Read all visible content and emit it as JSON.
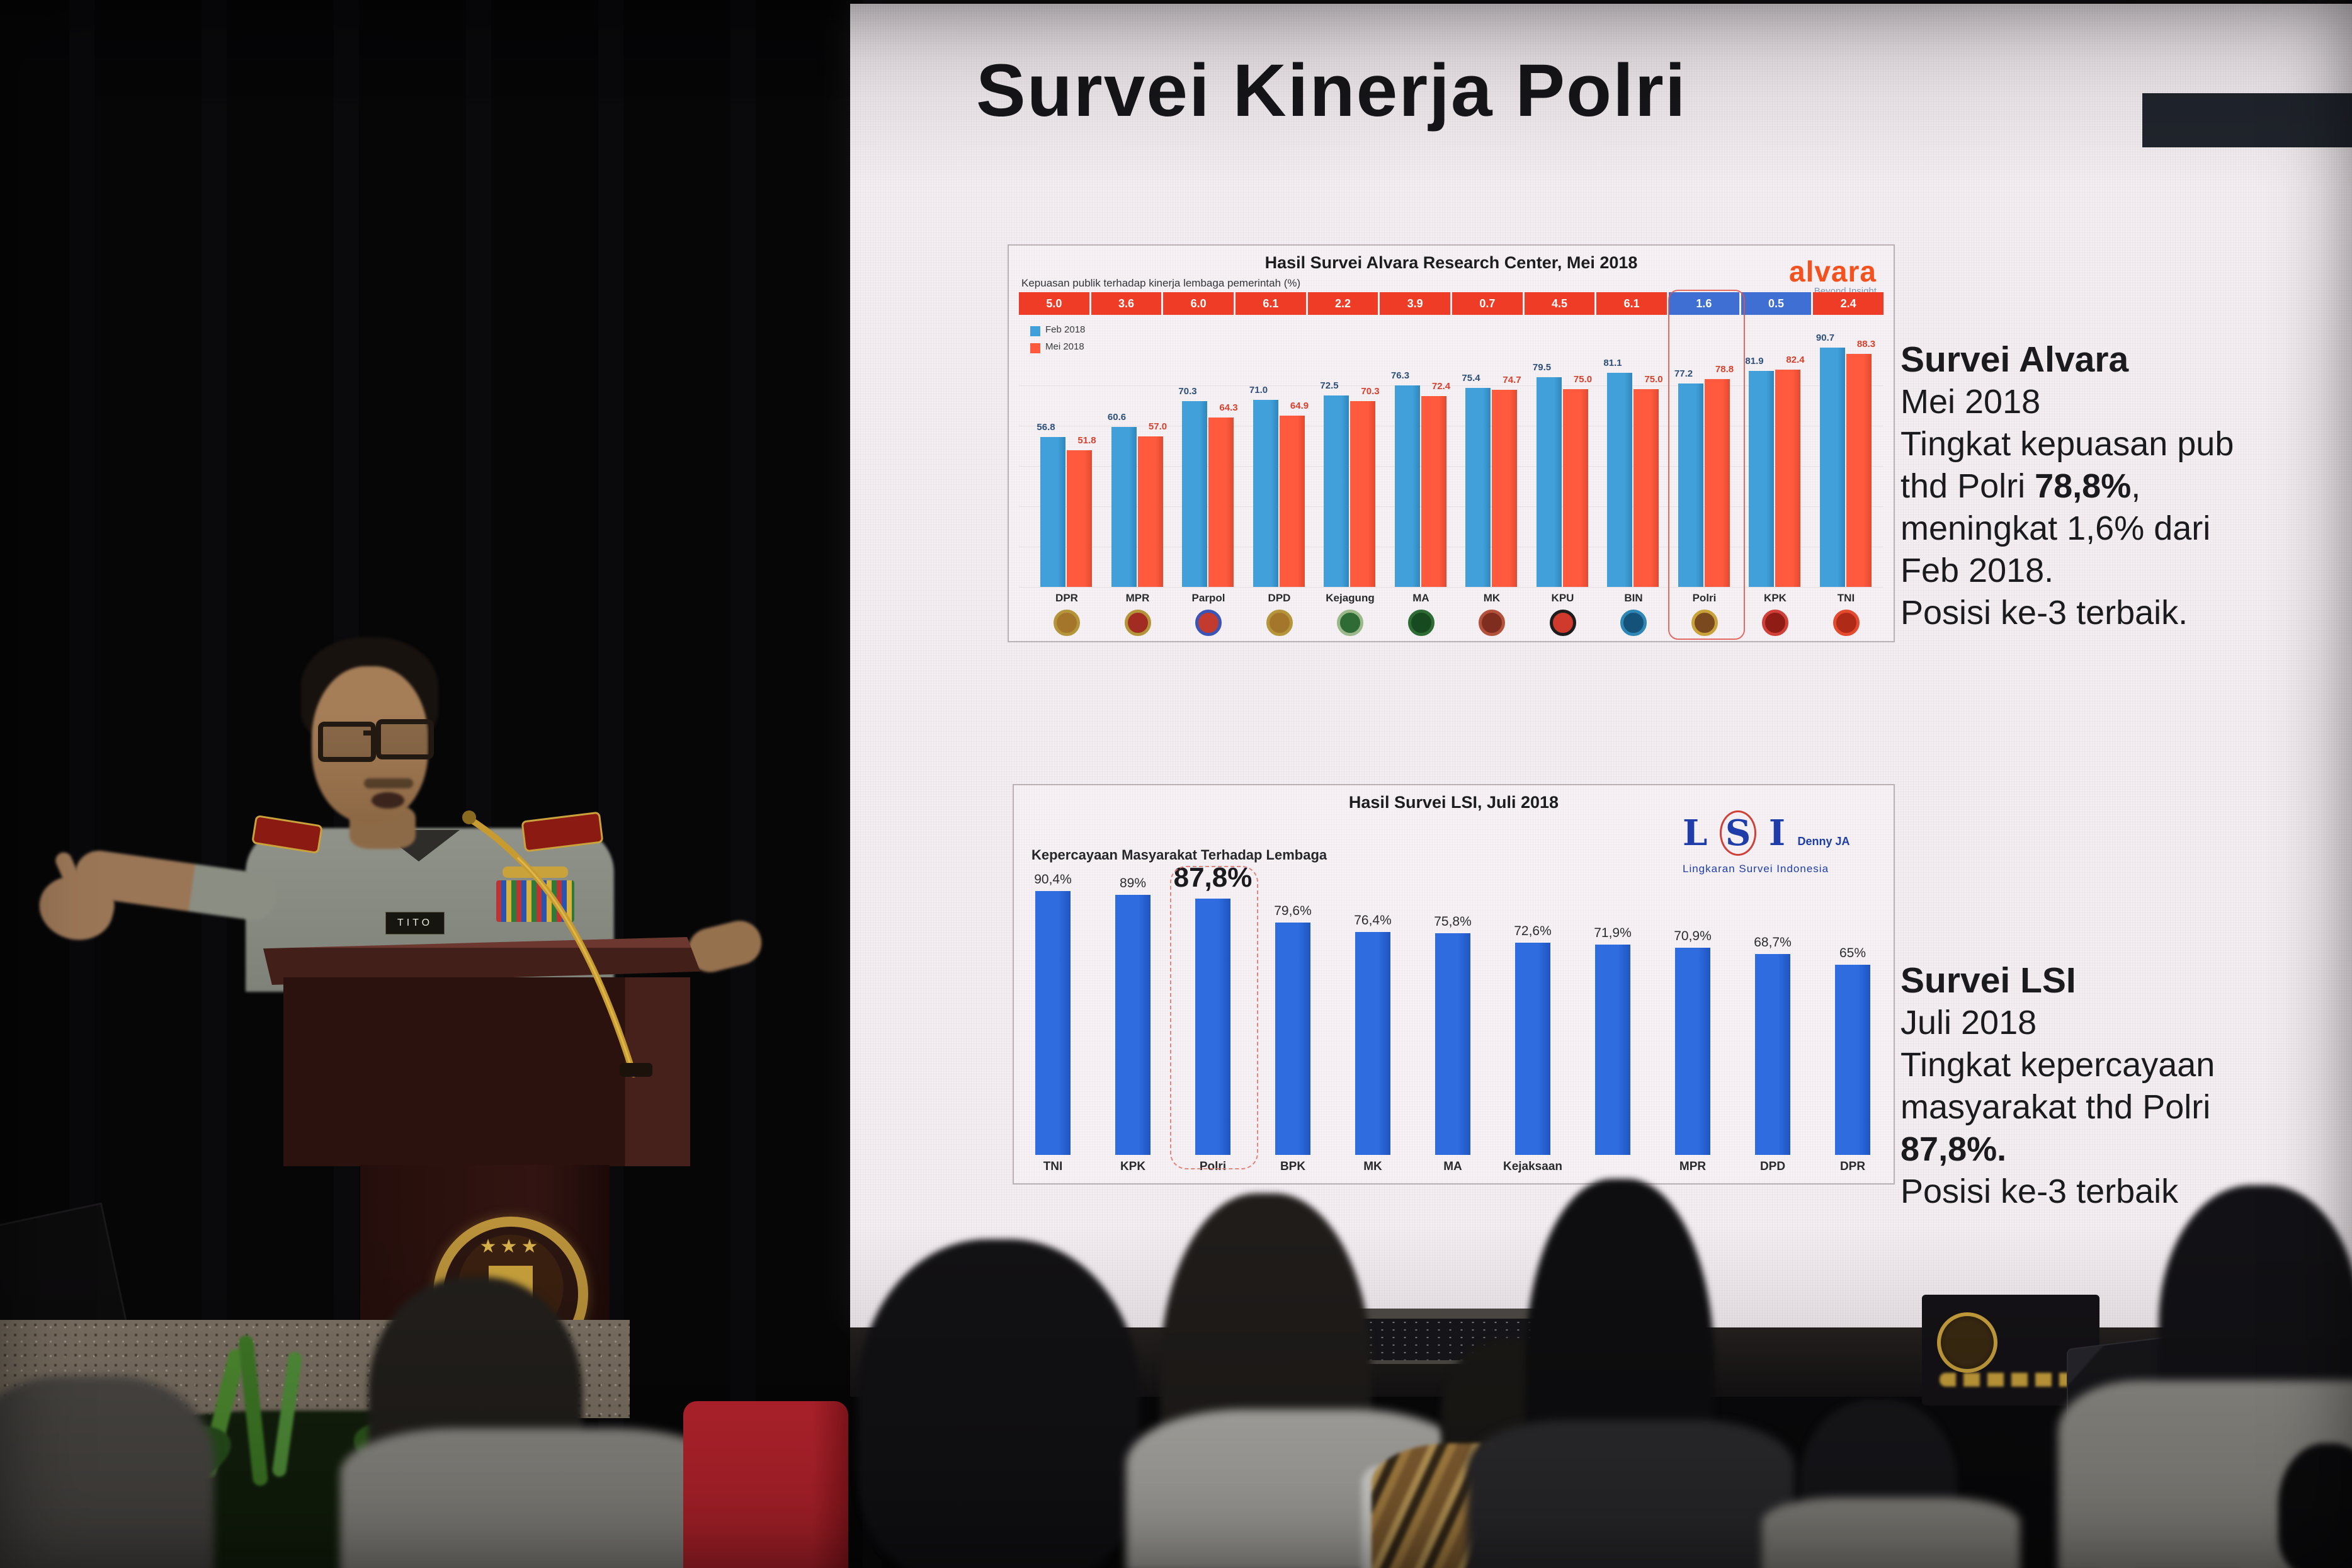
{
  "slide": {
    "title": "Survei Kinerja Polri"
  },
  "speaker": {
    "name_tag": "TITO"
  },
  "colors": {
    "feb_blue": "#41a0da",
    "mei_red": "#ff5a3e",
    "banner_down": "#ee3c26",
    "banner_up": "#3f6fd2",
    "lsi_blue": "#2e6ce0",
    "alvara_orange": "#f4511e",
    "lsi_navy": "#1e3da8",
    "screen_bg": "#f3eef0"
  },
  "chart_data": [
    {
      "type": "bar",
      "title": "Hasil Survei Alvara Research Center, Mei 2018",
      "subtitle": "Kepuasan publik terhadap kinerja lembaga pemerintah (%)",
      "logo": {
        "text": "alvara",
        "tagline": "Beyond Insight"
      },
      "legend_position": "left",
      "grid": true,
      "ylim": [
        0,
        95
      ],
      "categories": [
        "DPR",
        "MPR",
        "Parpol",
        "DPD",
        "Kejagung",
        "MA",
        "MK",
        "KPU",
        "BIN",
        "Polri",
        "KPK",
        "TNI"
      ],
      "series": [
        {
          "name": "Feb 2018",
          "values": [
            56.8,
            60.6,
            70.3,
            71.0,
            72.5,
            76.3,
            75.4,
            79.5,
            81.1,
            77.2,
            81.9,
            90.7
          ],
          "labels": [
            "56.8",
            "60.6",
            "70.3",
            "71.0",
            "72.5",
            "76.3",
            "75.4",
            "79.5",
            "81.1",
            "77.2",
            "81.9",
            "90.7"
          ]
        },
        {
          "name": "Mei 2018",
          "values": [
            51.8,
            57.0,
            64.3,
            64.9,
            70.3,
            72.4,
            74.7,
            75.0,
            75.0,
            78.8,
            82.4,
            88.3
          ],
          "labels": [
            "51.8",
            "57.0",
            "64.3",
            "64.9",
            "70.3",
            "72.4",
            "74.7",
            "75.0",
            "75.0",
            "78.8",
            "82.4",
            "88.3"
          ]
        }
      ],
      "diff_row": [
        {
          "label": "5.0",
          "dir": "down"
        },
        {
          "label": "3.6",
          "dir": "down"
        },
        {
          "label": "6.0",
          "dir": "down"
        },
        {
          "label": "6.1",
          "dir": "down"
        },
        {
          "label": "2.2",
          "dir": "down"
        },
        {
          "label": "3.9",
          "dir": "down"
        },
        {
          "label": "0.7",
          "dir": "down"
        },
        {
          "label": "4.5",
          "dir": "down"
        },
        {
          "label": "6.1",
          "dir": "down"
        },
        {
          "label": "1.6",
          "dir": "up"
        },
        {
          "label": "0.5",
          "dir": "up"
        },
        {
          "label": "2.4",
          "dir": "down"
        }
      ],
      "highlight_category": "Polri",
      "logo_ring": [
        "#b5953a",
        "#b5953a",
        "#3a55b5",
        "#b5953a",
        "#9ab88a",
        "#2f6b35",
        "#b4513a",
        "#1d1d1d",
        "#2e86b5",
        "#caa23a",
        "#d04038",
        "#e44a2e"
      ],
      "logo_fill": [
        "#a3762c",
        "#a32c22",
        "#c23b2e",
        "#a3762c",
        "#2f6b35",
        "#174a1e",
        "#7e2d1e",
        "#d03a2c",
        "#15527a",
        "#7a4a1e",
        "#901c16",
        "#b02a18"
      ]
    },
    {
      "type": "bar",
      "title": "Hasil Survei LSI, Juli 2018",
      "subtitle": "Kepercayaan Masyarakat Terhadap Lembaga",
      "logo": {
        "l": "L",
        "s": "S",
        "i": "I",
        "right": "Denny JA",
        "sub": "Lingkaran Survei Indonesia"
      },
      "grid": false,
      "ylim": [
        0,
        95
      ],
      "categories": [
        "TNI",
        "KPK",
        "Polri",
        "BPK",
        "MK",
        "MA",
        "Kejaksaan",
        "",
        "MPR",
        "DPD",
        "DPR"
      ],
      "values": [
        90.4,
        89,
        87.8,
        79.6,
        76.4,
        75.8,
        72.6,
        71.9,
        70.9,
        68.7,
        65
      ],
      "labels": [
        "90,4%",
        "89%",
        "87,8%",
        "79,6%",
        "76,4%",
        "75,8%",
        "72,6%",
        "71,9%",
        "70,9%",
        "68,7%",
        "65%"
      ],
      "highlight_category": "Polri"
    }
  ],
  "notes": {
    "alvara": {
      "heading": "Survei Alvara",
      "l1": "Mei 2018",
      "l2": "Tingkat kepuasan pub",
      "l3a": "thd Polri ",
      "l3b": "78,8%",
      "l3c": ",",
      "l4": "meningkat 1,6% dari",
      "l5": "Feb 2018.",
      "l6": "Posisi ke-3 terbaik."
    },
    "lsi": {
      "heading": "Survei LSI",
      "l1": "Juli 2018",
      "l2": "Tingkat kepercayaan",
      "l3": "masyarakat thd Polri",
      "l4": "87,8%.",
      "l5": "Posisi ke-3 terbaik"
    }
  }
}
